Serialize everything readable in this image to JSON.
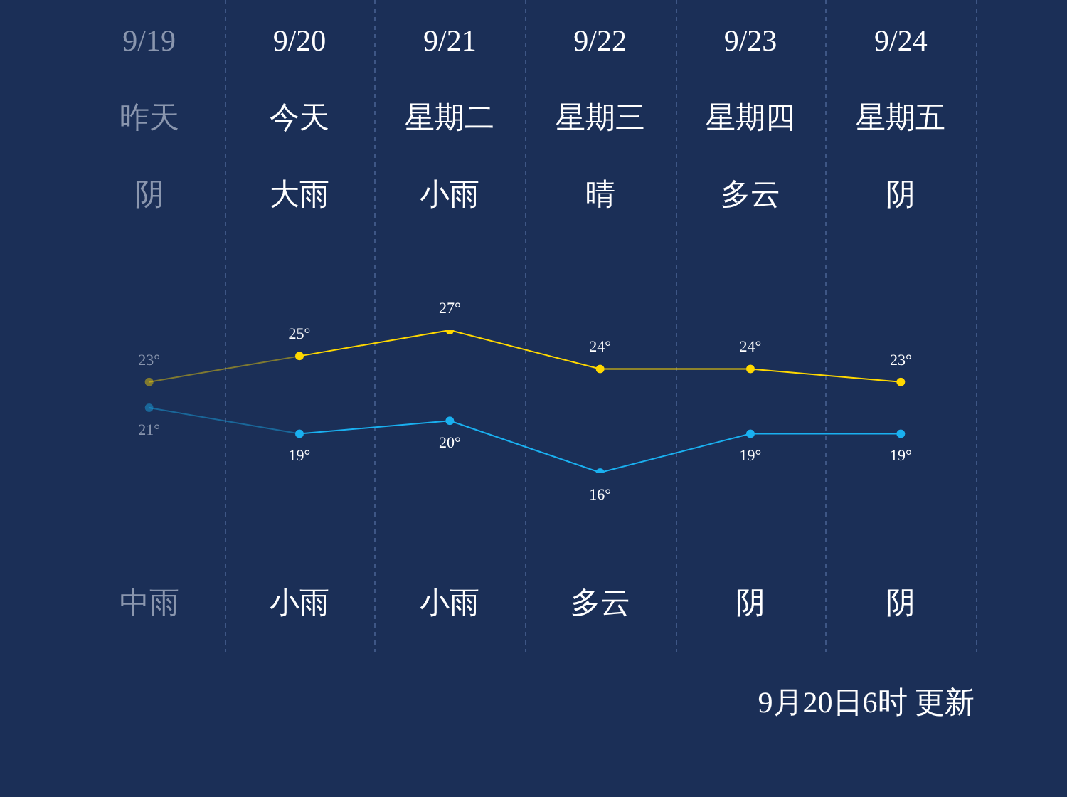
{
  "chart_data": {
    "type": "line",
    "categories": [
      "9/19",
      "9/20",
      "9/21",
      "9/22",
      "9/23",
      "9/24"
    ],
    "series": [
      {
        "color": "#ffd800",
        "values": [
          23,
          25,
          27,
          24,
          24,
          23
        ],
        "value_labels": [
          "23°",
          "25°",
          "27°",
          "24°",
          "24°",
          "23°"
        ]
      },
      {
        "color": "#1ab0f0",
        "values": [
          21,
          19,
          20,
          16,
          19,
          19
        ],
        "value_labels": [
          "21°",
          "19°",
          "20°",
          "16°",
          "19°",
          "19°"
        ]
      }
    ],
    "annotations": [
      "昨天",
      "今天",
      "星期二",
      "星期三",
      "星期四",
      "星期五",
      "阴",
      "大雨",
      "小雨",
      "晴",
      "多云",
      "阴",
      "中雨",
      "小雨",
      "小雨",
      "多云",
      "阴",
      "阴",
      "9月20日6时 更新"
    ],
    "grid": "x",
    "legend": false,
    "marker": "circle",
    "line_style": "solid"
  }
}
